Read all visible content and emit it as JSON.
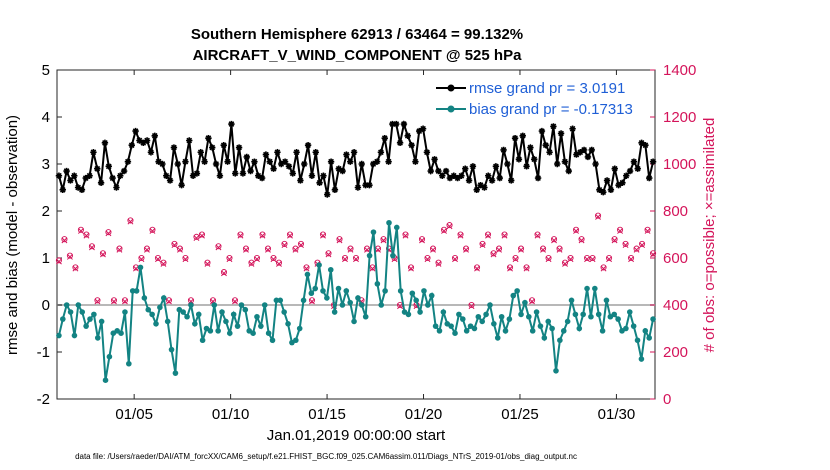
{
  "colors": {
    "rmse": "#000000",
    "bias": "#138383",
    "obs": "#d4145a",
    "zero_line": "#b8b8b8",
    "legend_text": "#1f5fd6"
  },
  "chart_data": {
    "type": "line",
    "title_line1": "Southern Hemisphere 62913 / 63464 = 99.132%",
    "title_line2": "AIRCRAFT_V_WIND_COMPONENT @ 525 hPa",
    "xlabel": "Jan.01,2019 00:00:00 start",
    "ylabel_left": "rmse and bias (model - observation)",
    "ylabel_right": "# of obs: o=possible; ×=assimilated",
    "footer": "data file: /Users/raeder/DAI/ATM_forcXX/CAM6_setup/f.e21.FHIST_BGC.f09_025.CAM6assim.011/Diags_NTrS_2019-01/obs_diag_output.nc",
    "xlim": [
      1.0,
      32.0
    ],
    "ylim_left": [
      -2,
      5
    ],
    "ylim_right": [
      0,
      1400
    ],
    "x_ticks": [
      5,
      10,
      15,
      20,
      25,
      30
    ],
    "x_tick_labels": [
      "01/05",
      "01/10",
      "01/15",
      "01/20",
      "01/25",
      "01/30"
    ],
    "y_ticks_left": [
      "-2",
      "-1",
      "0",
      "1",
      "2",
      "3",
      "4",
      "5"
    ],
    "y_ticks_right": [
      "0",
      "200",
      "400",
      "600",
      "800",
      "1000",
      "1200",
      "1400"
    ],
    "legend": [
      {
        "name": "rmse grand pr = 3.0191",
        "key": "rmse"
      },
      {
        "name": "bias grand pr = -0.17313",
        "key": "bias"
      }
    ],
    "series": [
      {
        "name": "rmse",
        "values": [
          2.75,
          2.45,
          2.85,
          2.65,
          2.75,
          2.5,
          2.45,
          2.7,
          2.75,
          3.25,
          2.9,
          2.6,
          3.45,
          2.95,
          2.7,
          2.5,
          2.75,
          2.85,
          3.05,
          3.4,
          3.7,
          3.5,
          3.45,
          3.5,
          3.25,
          3.6,
          3.05,
          3.0,
          2.75,
          2.65,
          3.35,
          3.0,
          2.55,
          3.05,
          3.5,
          2.75,
          2.8,
          3.25,
          3.05,
          3.55,
          3.35,
          3.0,
          2.75,
          3.4,
          3.05,
          3.85,
          2.8,
          3.35,
          2.8,
          3.15,
          2.85,
          3.05,
          2.75,
          2.7,
          3.2,
          3.05,
          2.9,
          3.25,
          3.0,
          3.05,
          2.95,
          2.8,
          3.25,
          2.65,
          3.0,
          3.4,
          2.75,
          3.25,
          2.6,
          2.75,
          2.35,
          3.05,
          2.45,
          2.9,
          2.85,
          3.2,
          3.05,
          3.25,
          2.5,
          3.0,
          2.55,
          2.55,
          3.0,
          3.05,
          3.25,
          3.55,
          3.05,
          3.85,
          3.85,
          3.45,
          3.85,
          3.6,
          3.4,
          3.05,
          3.7,
          3.75,
          3.25,
          2.85,
          3.1,
          2.85,
          2.75,
          2.85,
          2.7,
          2.75,
          2.7,
          2.75,
          2.9,
          2.65,
          2.95,
          2.45,
          2.55,
          2.5,
          2.75,
          2.65,
          2.95,
          2.7,
          3.3,
          3.0,
          2.65,
          3.55,
          3.1,
          3.6,
          2.95,
          3.35,
          3.1,
          2.7,
          3.7,
          3.4,
          3.25,
          3.8,
          3.0,
          3.65,
          3.05,
          2.85,
          3.75,
          3.2,
          3.25,
          3.3,
          3.15,
          3.3,
          3.0,
          2.45,
          2.4,
          2.65,
          2.45,
          2.9,
          2.55,
          2.6,
          2.75,
          2.85,
          3.05,
          2.9,
          3.45,
          3.4,
          2.7,
          3.05
        ]
      },
      {
        "name": "bias",
        "values": [
          -0.65,
          -0.3,
          0.0,
          -0.15,
          -0.65,
          0.0,
          -0.15,
          -0.45,
          -0.3,
          -0.2,
          -0.7,
          -0.35,
          -1.6,
          -1.1,
          -0.6,
          -0.55,
          -0.6,
          -0.15,
          -1.25,
          0.3,
          0.3,
          0.8,
          0.15,
          -0.1,
          -0.2,
          -0.4,
          -0.05,
          0.15,
          -0.35,
          -0.95,
          -1.45,
          -0.1,
          -0.15,
          -0.25,
          0.0,
          -0.4,
          -0.2,
          -0.75,
          -0.5,
          -0.55,
          0.0,
          -0.55,
          -0.15,
          -0.35,
          -0.6,
          -0.2,
          -0.45,
          0.0,
          -0.1,
          -0.55,
          -0.6,
          -0.25,
          -0.45,
          0.0,
          -0.6,
          -0.75,
          0.1,
          0.1,
          -0.15,
          -0.4,
          -0.8,
          -0.75,
          -0.5,
          0.1,
          0.65,
          0.25,
          0.35,
          0.85,
          0.3,
          0.15,
          0.75,
          -0.15,
          0.35,
          0.0,
          0.3,
          0.05,
          -0.35,
          0.15,
          0.0,
          -0.25,
          1.05,
          1.55,
          0.45,
          0.0,
          0.3,
          1.75,
          1.05,
          1.65,
          0.3,
          -0.15,
          -0.2,
          0.25,
          0.1,
          -0.15,
          0.3,
          0.0,
          0.2,
          -0.45,
          -0.55,
          -0.15,
          -0.4,
          -0.45,
          -0.6,
          -0.2,
          -0.3,
          -0.55,
          -0.45,
          -0.5,
          -0.25,
          -0.35,
          -0.2,
          0.0,
          -0.4,
          -0.7,
          -0.25,
          -0.55,
          -0.3,
          0.2,
          0.3,
          -0.2,
          0.05,
          -0.25,
          -0.55,
          -0.15,
          -0.45,
          -0.7,
          -0.35,
          -0.5,
          -1.4,
          -0.75,
          -0.55,
          -0.35,
          0.1,
          -0.2,
          -0.5,
          -0.2,
          0.35,
          -0.25,
          0.35,
          -0.2,
          -0.55,
          0.1,
          -0.25,
          -0.2,
          -0.3,
          -0.55,
          -0.5,
          -0.15,
          -0.45,
          -0.75,
          -1.15,
          -0.55,
          -0.7,
          -0.3
        ]
      },
      {
        "name": "obs_possible",
        "values": [
          590,
          680,
          610,
          560,
          720,
          700,
          650,
          420,
          620,
          710,
          420,
          640,
          420,
          760,
          560,
          600,
          640,
          720,
          600,
          580,
          420,
          660,
          640,
          600,
          420,
          690,
          700,
          580,
          420,
          650,
          540,
          600,
          420,
          700,
          640,
          580,
          600,
          700,
          640,
          600,
          580,
          660,
          700,
          640,
          660,
          560,
          420,
          580,
          700,
          620,
          400,
          680,
          600,
          640,
          600,
          420,
          640,
          560,
          640,
          680,
          640,
          600,
          400,
          700,
          560,
          400,
          680,
          600,
          640,
          580,
          720,
          740,
          600,
          700,
          640,
          400,
          560,
          660,
          700,
          620,
          640,
          700,
          560,
          600,
          640,
          560,
          420,
          700,
          640,
          600,
          680,
          640,
          580,
          600,
          720,
          680,
          600,
          600,
          780,
          560,
          600,
          680,
          720,
          660,
          600,
          640,
          660,
          720,
          620
        ]
      },
      {
        "name": "obs_assimilated",
        "values": [
          585,
          675,
          605,
          555,
          715,
          695,
          645,
          415,
          615,
          705,
          415,
          635,
          415,
          755,
          555,
          595,
          635,
          715,
          595,
          575,
          415,
          655,
          635,
          595,
          415,
          685,
          695,
          575,
          415,
          645,
          535,
          595,
          415,
          695,
          635,
          575,
          595,
          695,
          635,
          595,
          575,
          655,
          695,
          635,
          655,
          555,
          415,
          575,
          695,
          615,
          395,
          675,
          595,
          635,
          595,
          415,
          635,
          555,
          635,
          675,
          635,
          595,
          395,
          695,
          555,
          395,
          675,
          595,
          635,
          575,
          715,
          735,
          595,
          695,
          635,
          395,
          555,
          655,
          695,
          615,
          635,
          695,
          555,
          595,
          635,
          555,
          415,
          695,
          635,
          595,
          675,
          635,
          575,
          595,
          715,
          675,
          595,
          595,
          775,
          555,
          595,
          675,
          715,
          655,
          595,
          635,
          655,
          715,
          615
        ]
      }
    ]
  }
}
